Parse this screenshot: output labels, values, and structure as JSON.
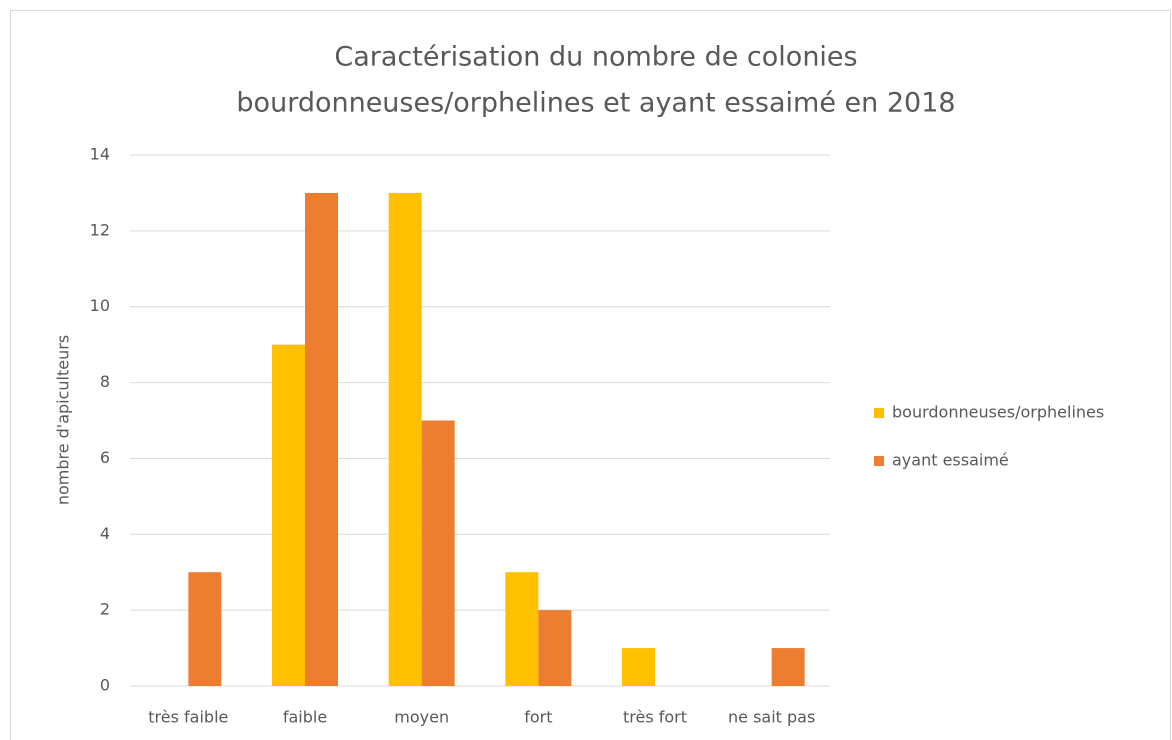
{
  "chart_data": {
    "type": "bar",
    "title": [
      "Caractérisation du nombre de colonies",
      "bourdonneuses/orphelines  et ayant essaimé en 2018"
    ],
    "y_label": "nombre d'apiculteurs",
    "categories": [
      "très faible",
      "faible",
      "moyen",
      "fort",
      "très fort",
      "ne sait pas"
    ],
    "series": [
      {
        "name": "bourdonneuses/orphelines",
        "color": "#ffc000",
        "values": [
          0,
          9,
          13,
          3,
          1,
          0
        ]
      },
      {
        "name": "ayant essaimé",
        "color": "#ed7d31",
        "values": [
          3,
          13,
          7,
          2,
          0,
          1
        ]
      }
    ],
    "ylim": [
      0,
      14
    ],
    "yticks": [
      0,
      2,
      4,
      6,
      8,
      10,
      12,
      14
    ],
    "grid": true,
    "legend": "right"
  }
}
